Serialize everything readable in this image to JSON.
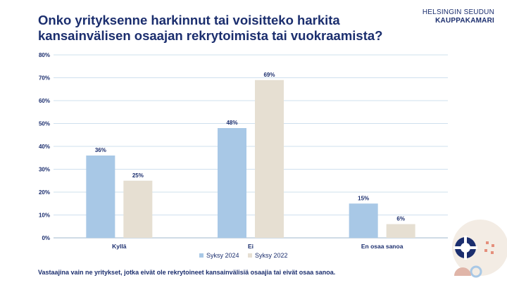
{
  "header": {
    "title": "Onko yrityksenne harkinnut tai voisitteko harkita kansainvälisen osaajan rekrytoimista tai vuokraamista?",
    "brand_line1": "HELSINGIN SEUDUN",
    "brand_line2": "KAUPPAKAMARI"
  },
  "colors": {
    "series1": "#a8c8e6",
    "series2": "#e6dfd2",
    "text": "#1b2e6e",
    "grid": "#cfe0ee"
  },
  "chart_data": {
    "type": "bar",
    "categories": [
      "Kyllä",
      "Ei",
      "En osaa sanoa"
    ],
    "series": [
      {
        "name": "Syksy 2024",
        "values": [
          36,
          48,
          15
        ]
      },
      {
        "name": "Syksy 2022",
        "values": [
          25,
          69,
          6
        ]
      }
    ],
    "value_labels": [
      [
        "36%",
        "48%",
        "15%"
      ],
      [
        "25%",
        "69%",
        "6%"
      ]
    ],
    "yticks": [
      "0%",
      "10%",
      "20%",
      "30%",
      "40%",
      "50%",
      "60%",
      "70%",
      "80%"
    ],
    "ylim": [
      0,
      80
    ],
    "grid": true,
    "legend_position": "bottom",
    "title": "Onko yrityksenne harkinnut tai voisitteko harkita kansainvälisen osaajan rekrytoimista tai vuokraamista?",
    "xlabel": "",
    "ylabel": ""
  },
  "footnote": "Vastaajina vain ne yritykset, jotka eivät ole rekrytoineet kansainvälisiä osaajia tai eivät osaa sanoa."
}
